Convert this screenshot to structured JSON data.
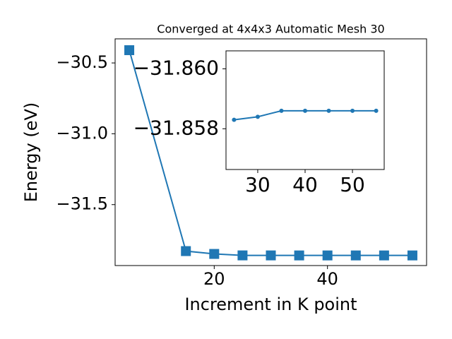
{
  "chart_data": [
    {
      "type": "line",
      "title": "Converged at 4x4x3 Automatic Mesh 30",
      "x_label": "Increment in K point",
      "y_label": "Energy (eV)",
      "x": [
        5,
        15,
        20,
        25,
        30,
        35,
        40,
        45,
        50,
        55
      ],
      "series": [
        {
          "color": "#1f77b4",
          "marker": "square",
          "values": [
            -30.41,
            -31.828,
            -31.848,
            -31.8583,
            -31.8584,
            -31.8586,
            -31.8586,
            -31.8586,
            -31.8586,
            -31.8586
          ]
        }
      ],
      "xlim": [
        2.5,
        57.5
      ],
      "xticks": [
        20,
        40
      ],
      "ylim": [
        -31.93,
        -30.33
      ],
      "yticks": [
        {
          "value": -30.5,
          "label": "−30.5"
        },
        {
          "value": -31.0,
          "label": "−31.0"
        },
        {
          "value": -31.5,
          "label": "−31.5"
        }
      ]
    },
    {
      "type": "line",
      "x": [
        25,
        30,
        35,
        40,
        45,
        50,
        55
      ],
      "series": [
        {
          "color": "#1f77b4",
          "marker": "circle",
          "values": [
            -31.8583,
            -31.8584,
            -31.8586,
            -31.8586,
            -31.8586,
            -31.8586,
            -31.8586
          ]
        }
      ],
      "xlim": [
        23.3,
        56.7
      ],
      "xticks": [
        30,
        40,
        50
      ],
      "ylim": [
        -31.85664,
        -31.8606
      ],
      "yticks": [
        {
          "value": -31.86,
          "label": "−31.860"
        },
        {
          "value": -31.858,
          "label": "−31.858"
        }
      ]
    }
  ]
}
